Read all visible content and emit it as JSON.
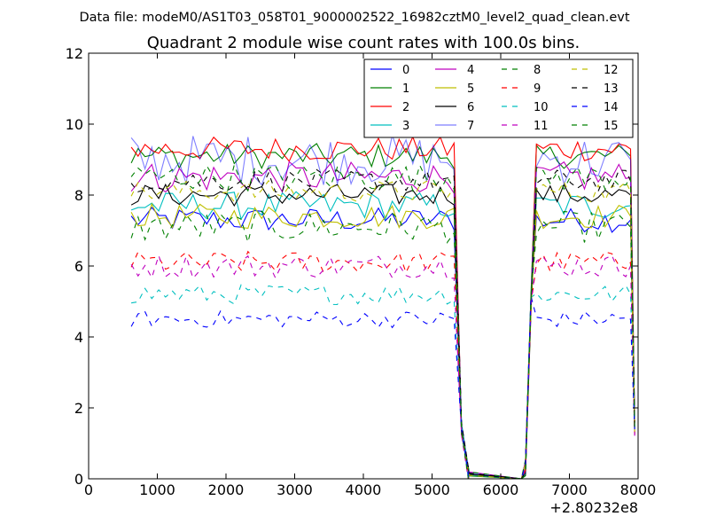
{
  "figure": {
    "suptitle": "Data file: modeM0/AS1T03_058T01_9000002522_16982cztM0_level2_quad_clean.evt"
  },
  "chart_data": {
    "type": "line",
    "title": "Quadrant 2 module wise count rates with 100.0s bins.",
    "xlabel": "",
    "ylabel": "",
    "x_offset_label": "+2.80232e8",
    "xlim": [
      0,
      8000
    ],
    "ylim": [
      0,
      12
    ],
    "xticks": [
      0,
      1000,
      2000,
      3000,
      4000,
      5000,
      6000,
      7000,
      8000
    ],
    "yticks": [
      0,
      2,
      4,
      6,
      8,
      10,
      12
    ],
    "x_start": 620,
    "x_step": 100,
    "x_end": 7950,
    "gap": {
      "decline_points": [
        [
          5430,
          1.4
        ],
        [
          5540,
          0.0
        ]
      ],
      "zero_until": 6300,
      "rise_points": [
        [
          6360,
          0.3
        ],
        [
          6440,
          5.0
        ],
        [
          6520,
          "level"
        ]
      ],
      "final_drop": [
        [
          7890,
          "level"
        ],
        [
          7950,
          1.5
        ]
      ],
      "data_end_before_gap": 5330
    },
    "legend": {
      "location": "upper right",
      "ncol": 4
    },
    "series": [
      {
        "name": "0",
        "color": "#0000ff",
        "dash": "solid",
        "level": 7.3,
        "noise": 0.22
      },
      {
        "name": "1",
        "color": "#008000",
        "dash": "solid",
        "level": 9.1,
        "noise": 0.22
      },
      {
        "name": "2",
        "color": "#ff0000",
        "dash": "solid",
        "level": 9.3,
        "noise": 0.22
      },
      {
        "name": "3",
        "color": "#00bfbf",
        "dash": "solid",
        "level": 7.7,
        "noise": 0.25
      },
      {
        "name": "4",
        "color": "#bf00bf",
        "dash": "solid",
        "level": 8.5,
        "noise": 0.28
      },
      {
        "name": "5",
        "color": "#bfbf00",
        "dash": "solid",
        "level": 7.4,
        "noise": 0.22
      },
      {
        "name": "6",
        "color": "#000000",
        "dash": "solid",
        "level": 8.0,
        "noise": 0.2
      },
      {
        "name": "7",
        "color": "#0000ff",
        "dash": "solid",
        "level": 9.0,
        "noise": 0.45,
        "alpha": 0.5
      },
      {
        "name": "8",
        "color": "#008000",
        "dash": "dashed",
        "level": 7.1,
        "noise": 0.28
      },
      {
        "name": "9",
        "color": "#ff0000",
        "dash": "dashed",
        "level": 6.1,
        "noise": 0.2
      },
      {
        "name": "10",
        "color": "#00bfbf",
        "dash": "dashed",
        "level": 5.2,
        "noise": 0.18
      },
      {
        "name": "11",
        "color": "#bf00bf",
        "dash": "dashed",
        "level": 6.0,
        "noise": 0.22
      },
      {
        "name": "12",
        "color": "#bfbf00",
        "dash": "dashed",
        "level": 8.1,
        "noise": 0.2
      },
      {
        "name": "13",
        "color": "#000000",
        "dash": "dashed",
        "level": 8.4,
        "noise": 0.2
      },
      {
        "name": "14",
        "color": "#0000ff",
        "dash": "dashed",
        "level": 4.5,
        "noise": 0.15
      },
      {
        "name": "15",
        "color": "#008000",
        "dash": "dashed",
        "level": 8.5,
        "noise": 0.25
      }
    ]
  }
}
